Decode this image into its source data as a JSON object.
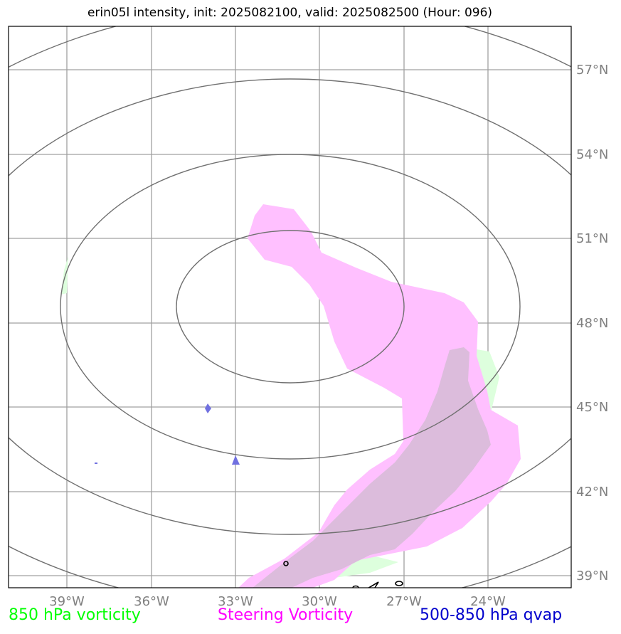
{
  "title": "erin05l intensity, init: 2025082100, valid: 2025082500 (Hour: 096)",
  "longitude_labels": [
    "39°W",
    "36°W",
    "33°W",
    "30°W",
    "27°W",
    "24°W"
  ],
  "latitude_labels": [
    "57°N",
    "54°N",
    "51°N",
    "48°N",
    "45°N",
    "42°N",
    "39°N"
  ],
  "legend": {
    "vorticity_850": {
      "label": "850 hPa vorticity",
      "color": "#00ff00"
    },
    "steering_vorticity": {
      "label": "Steering Vorticity",
      "color": "#ff00ff"
    },
    "qvap_500_850": {
      "label": "500-850 hPa qvap",
      "color": "#0000cc"
    }
  },
  "colors": {
    "grid": "#a0a0a0",
    "range_ring": "#707070",
    "steering_fill": "#ffc0ff",
    "vort850_fill": "#ddffdd",
    "overlap_fill": "#dcbcdc",
    "qvap_fill": "#7070e0",
    "tick_label": "#808080"
  }
}
